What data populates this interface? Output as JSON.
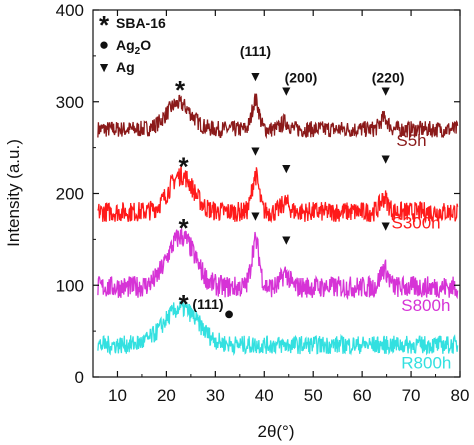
{
  "chart_data": {
    "type": "line",
    "xlabel": "2θ(°)",
    "ylabel": "Intensity (a.u.)",
    "xlim": [
      5,
      80
    ],
    "ylim": [
      0,
      400
    ],
    "x_ticks": [
      "10",
      "20",
      "30",
      "40",
      "50",
      "60",
      "70",
      "80"
    ],
    "y_ticks": [
      "0",
      "100",
      "200",
      "300",
      "400"
    ],
    "grid": false,
    "legend": {
      "placement": "top-left",
      "entries": [
        {
          "symbol": "*",
          "label": "SBA-16",
          "sub": "",
          "tail": ""
        },
        {
          "symbol": "●",
          "label": "Ag",
          "sub": "2",
          "tail": "O"
        },
        {
          "symbol": "▼",
          "label": "Ag",
          "sub": "",
          "tail": ""
        }
      ]
    },
    "series": [
      {
        "name": "S5h",
        "color": "#8B1A1A",
        "label_x": 67,
        "label_y": 252,
        "baseline": 270,
        "noise": 9,
        "peaks": [
          [
            22.5,
            28,
            2.5
          ],
          [
            38.2,
            32,
            0.7
          ],
          [
            44.3,
            8,
            0.8
          ],
          [
            64.5,
            12,
            0.8
          ]
        ]
      },
      {
        "name": "S300h",
        "color": "#FF1A1A",
        "label_x": 66,
        "label_y": 162,
        "baseline": 180,
        "noise": 11,
        "peaks": [
          [
            23,
            40,
            2.5
          ],
          [
            38.2,
            40,
            0.7
          ],
          [
            44.3,
            10,
            0.8
          ],
          [
            64.5,
            15,
            0.8
          ]
        ]
      },
      {
        "name": "S800h",
        "color": "#D633D6",
        "label_x": 68,
        "label_y": 72,
        "baseline": 98,
        "noise": 12,
        "peaks": [
          [
            23,
            55,
            2.8
          ],
          [
            38.2,
            50,
            0.8
          ],
          [
            44.3,
            15,
            0.8
          ],
          [
            64.5,
            20,
            0.8
          ]
        ]
      },
      {
        "name": "R800h",
        "color": "#33E0E0",
        "label_x": 68,
        "label_y": 9,
        "baseline": 35,
        "noise": 10,
        "peaks": [
          [
            23,
            40,
            3.5
          ]
        ]
      }
    ],
    "annotations": [
      {
        "text": "*",
        "x": 22.8,
        "y": 318,
        "kind": "star"
      },
      {
        "text": "*",
        "x": 23.5,
        "y": 235,
        "kind": "star"
      },
      {
        "text": "*",
        "x": 23.5,
        "y": 168,
        "kind": "star"
      },
      {
        "text": "*",
        "x": 23.5,
        "y": 85,
        "kind": "star"
      },
      {
        "text": "▼",
        "x": 38.2,
        "y": 328,
        "kind": "marker"
      },
      {
        "text": "▼",
        "x": 44.5,
        "y": 312,
        "kind": "marker"
      },
      {
        "text": "▼",
        "x": 64.8,
        "y": 312,
        "kind": "marker"
      },
      {
        "text": "▼",
        "x": 38.2,
        "y": 247,
        "kind": "marker"
      },
      {
        "text": "▼",
        "x": 44.5,
        "y": 228,
        "kind": "marker"
      },
      {
        "text": "▼",
        "x": 64.8,
        "y": 238,
        "kind": "marker"
      },
      {
        "text": "▼",
        "x": 38.2,
        "y": 176,
        "kind": "marker"
      },
      {
        "text": "▼",
        "x": 44.5,
        "y": 150,
        "kind": "marker"
      },
      {
        "text": "▼",
        "x": 64.8,
        "y": 165,
        "kind": "marker"
      },
      {
        "text": "●",
        "x": 32.8,
        "y": 68,
        "kind": "marker"
      },
      {
        "text": "(111)",
        "x": 38.2,
        "y": 350,
        "kind": "label"
      },
      {
        "text": "(200)",
        "x": 47.5,
        "y": 321,
        "kind": "label"
      },
      {
        "text": "(220)",
        "x": 65.3,
        "y": 321,
        "kind": "label"
      },
      {
        "text": "(111)",
        "x": 28.5,
        "y": 74,
        "kind": "label"
      }
    ]
  }
}
